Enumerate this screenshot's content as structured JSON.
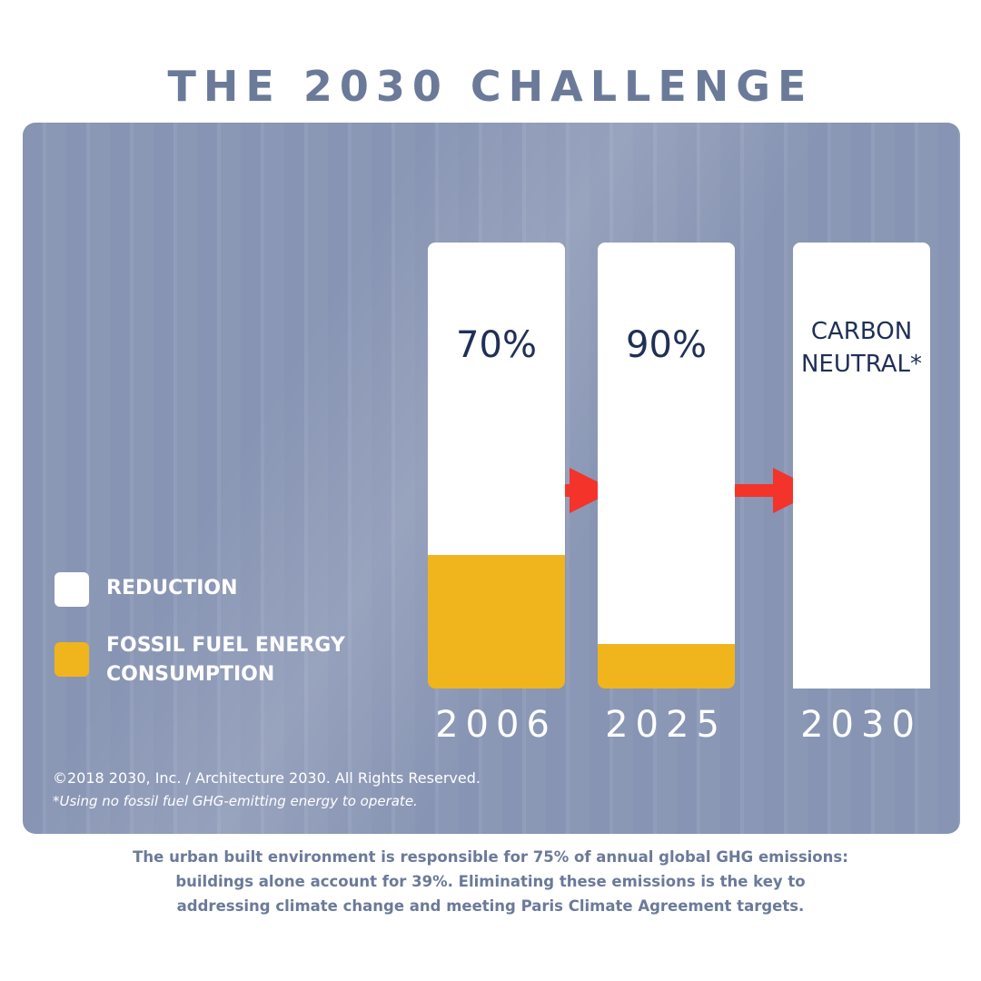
{
  "title": "THE 2030 CHALLENGE",
  "chart_data": {
    "type": "stacked_bar",
    "categories": [
      "2006",
      "2025",
      "2030"
    ],
    "series": [
      {
        "name": "REDUCTION",
        "color": "#ffffff",
        "values": [
          70,
          90,
          100
        ],
        "value_labels": [
          "70%",
          "90%",
          "CARBON NEUTRAL*"
        ]
      },
      {
        "name": "FOSSIL FUEL ENERGY CONSUMPTION",
        "color": "#f0b41c",
        "values": [
          30,
          10,
          0
        ]
      }
    ],
    "legend": "left"
  },
  "copyright": "©2018  2030, Inc. / Architecture 2030. All Rights Reserved.",
  "footnote": "*Using no fossil fuel GHG-emitting energy to operate.",
  "caption": "The urban built environment is responsible for 75% of annual global GHG emissions: buildings alone account for 39%. Eliminating these emissions is the key to addressing climate change and meeting Paris Climate Agreement targets."
}
